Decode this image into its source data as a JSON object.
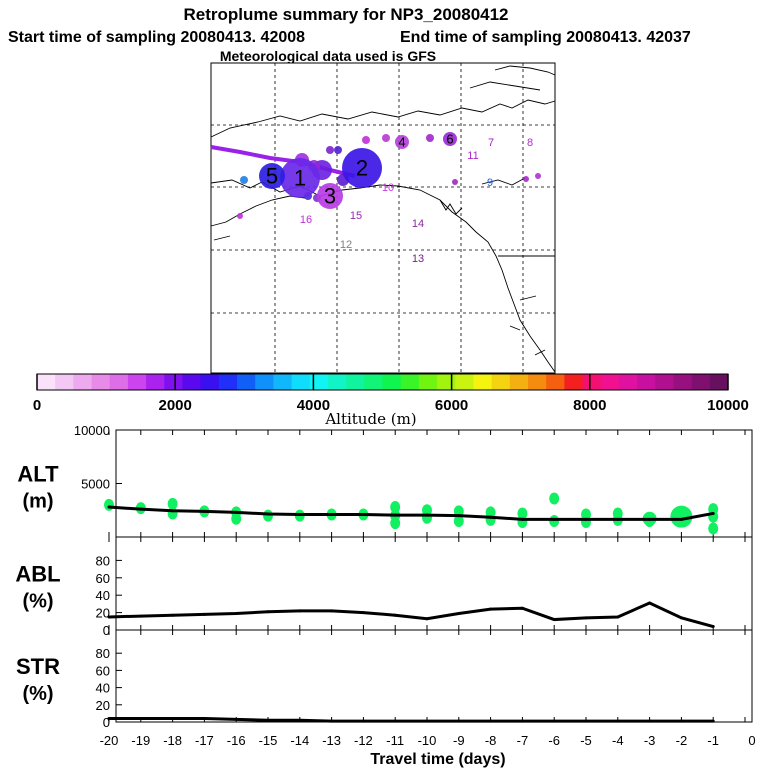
{
  "header": {
    "title": "Retroplume summary for NP3_20080412",
    "start_time": "Start time of sampling 20080413. 42008",
    "end_time": "End time of sampling 20080413. 42037",
    "met_line": "Meteorological data used is GFS"
  },
  "map": {
    "markers": [
      {
        "label": "1",
        "color": "#6a28e8",
        "size": "large"
      },
      {
        "label": "2",
        "color": "#3c16e6",
        "size": "large"
      },
      {
        "label": "3",
        "color": "#b93ce6",
        "size": "medium"
      },
      {
        "label": "4",
        "color": "#b340d8",
        "size": "small"
      },
      {
        "label": "5",
        "color": "#2b1ee0",
        "size": "medium"
      },
      {
        "label": "6",
        "color": "#9a2cd6",
        "size": "small"
      },
      {
        "label": "7",
        "color": "#a020c0",
        "size": "tiny"
      },
      {
        "label": "8",
        "color": "#b030c8",
        "size": "tiny"
      },
      {
        "label": "9",
        "color": "#2060d8",
        "size": "tiny"
      },
      {
        "label": "10",
        "color": "#c83ae0",
        "size": "tiny"
      },
      {
        "label": "11",
        "color": "#b028c8",
        "size": "tiny"
      },
      {
        "label": "12",
        "color": "#808080",
        "size": "tiny"
      },
      {
        "label": "13",
        "color": "#7a1e8a",
        "size": "tiny"
      },
      {
        "label": "14",
        "color": "#8a28a0",
        "size": "tiny"
      },
      {
        "label": "15",
        "color": "#9828b8",
        "size": "tiny"
      },
      {
        "label": "16",
        "color": "#c030d8",
        "size": "tiny"
      }
    ]
  },
  "colorbar": {
    "ticks": [
      "0",
      "2000",
      "4000",
      "6000",
      "8000",
      "10000"
    ],
    "label": "Altitude (m)",
    "colors": [
      "#fbe2fb",
      "#f4c8f4",
      "#eeaaee",
      "#e88ae8",
      "#de6ee8",
      "#cc44ee",
      "#aa22ee",
      "#8010ee",
      "#5a08ee",
      "#3a10f0",
      "#2030f8",
      "#1060f8",
      "#1090fb",
      "#10b8fb",
      "#10dcfb",
      "#10f4f4",
      "#10f4c8",
      "#10f4a0",
      "#10f478",
      "#10f450",
      "#38f428",
      "#70f410",
      "#a0f410",
      "#c8f410",
      "#f4f410",
      "#f4d410",
      "#f4b010",
      "#f48c10",
      "#f46010",
      "#f42020",
      "#f41070",
      "#f01090",
      "#e010a0",
      "#c810a0",
      "#b01090",
      "#981080",
      "#801070",
      "#681060"
    ]
  },
  "chart_data": [
    {
      "type": "line",
      "panel": "ALT",
      "ylabel_line1": "ALT",
      "ylabel_line2": "(m)",
      "ylim": [
        0,
        10000
      ],
      "yticks": [
        "10000",
        "5000"
      ],
      "x": [
        -20,
        -19,
        -18,
        -17,
        -16,
        -15,
        -14,
        -13,
        -12,
        -11,
        -10,
        -9,
        -8,
        -7,
        -6,
        -5,
        -4,
        -3,
        -2,
        -1
      ],
      "series": [
        {
          "name": "median altitude",
          "values": [
            2800,
            2600,
            2450,
            2400,
            2300,
            2150,
            2100,
            2100,
            2100,
            2050,
            2050,
            2000,
            1850,
            1650,
            1650,
            1650,
            1650,
            1650,
            1650,
            2200
          ]
        }
      ],
      "spread": [
        {
          "x": -20,
          "alt": 3000
        },
        {
          "x": -19,
          "alt": 2700
        },
        {
          "x": -18,
          "alt": 3100
        },
        {
          "x": -18,
          "alt": 2200
        },
        {
          "x": -17,
          "alt": 2400
        },
        {
          "x": -16,
          "alt": 2300
        },
        {
          "x": -16,
          "alt": 1700
        },
        {
          "x": -15,
          "alt": 2000
        },
        {
          "x": -14,
          "alt": 2000
        },
        {
          "x": -13,
          "alt": 2100
        },
        {
          "x": -12,
          "alt": 2100
        },
        {
          "x": -11,
          "alt": 2800
        },
        {
          "x": -11,
          "alt": 2000
        },
        {
          "x": -11,
          "alt": 1300
        },
        {
          "x": -10,
          "alt": 2500
        },
        {
          "x": -10,
          "alt": 1800
        },
        {
          "x": -9,
          "alt": 2400
        },
        {
          "x": -9,
          "alt": 1500
        },
        {
          "x": -8,
          "alt": 2300
        },
        {
          "x": -8,
          "alt": 1600
        },
        {
          "x": -7,
          "alt": 2200
        },
        {
          "x": -7,
          "alt": 1400
        },
        {
          "x": -6,
          "alt": 1500
        },
        {
          "x": -6,
          "alt": 3600
        },
        {
          "x": -5,
          "alt": 2100
        },
        {
          "x": -5,
          "alt": 1400
        },
        {
          "x": -4,
          "alt": 2200
        },
        {
          "x": -4,
          "alt": 1600
        },
        {
          "x": -3,
          "alt": 1500
        },
        {
          "x": -2,
          "alt": 2000
        },
        {
          "x": -1,
          "alt": 2600
        },
        {
          "x": -1,
          "alt": 1900
        },
        {
          "x": -1,
          "alt": 800
        }
      ],
      "marker_color": "#10f060"
    },
    {
      "type": "line",
      "panel": "ABL",
      "ylabel_line1": "ABL",
      "ylabel_line2": "(%)",
      "ylim": [
        0,
        100
      ],
      "yticks": [
        "80",
        "60",
        "40",
        "20",
        "0"
      ],
      "x": [
        -20,
        -19,
        -18,
        -17,
        -16,
        -15,
        -14,
        -13,
        -12,
        -11,
        -10,
        -9,
        -8,
        -7,
        -6,
        -5,
        -4,
        -3,
        -2,
        -1
      ],
      "series": [
        {
          "name": "ABL fraction",
          "values": [
            15,
            16,
            17,
            18,
            19,
            21,
            22,
            22,
            20,
            17,
            13,
            19,
            24,
            25,
            12,
            14,
            15,
            31,
            14,
            4
          ]
        }
      ]
    },
    {
      "type": "line",
      "panel": "STR",
      "ylabel_line1": "STR",
      "ylabel_line2": "(%)",
      "ylim": [
        0,
        100
      ],
      "yticks": [
        "80",
        "60",
        "40",
        "20",
        "0"
      ],
      "x": [
        -20,
        -19,
        -18,
        -17,
        -16,
        -15,
        -14,
        -13,
        -12,
        -11,
        -10,
        -9,
        -8,
        -7,
        -6,
        -5,
        -4,
        -3,
        -2,
        -1
      ],
      "series": [
        {
          "name": "stratospheric fraction",
          "values": [
            4,
            4,
            4,
            4,
            3,
            2,
            2,
            1,
            1,
            1,
            1,
            1,
            1,
            1,
            1,
            1,
            1,
            1,
            1,
            1
          ]
        }
      ]
    }
  ],
  "xaxis": {
    "ticks": [
      "-20",
      "-19",
      "-18",
      "-17",
      "-16",
      "-15",
      "-14",
      "-13",
      "-12",
      "-11",
      "-10",
      "-9",
      "-8",
      "-7",
      "-6",
      "-5",
      "-4",
      "-3",
      "-2",
      "-1",
      "0"
    ],
    "label": "Travel time (days)"
  }
}
